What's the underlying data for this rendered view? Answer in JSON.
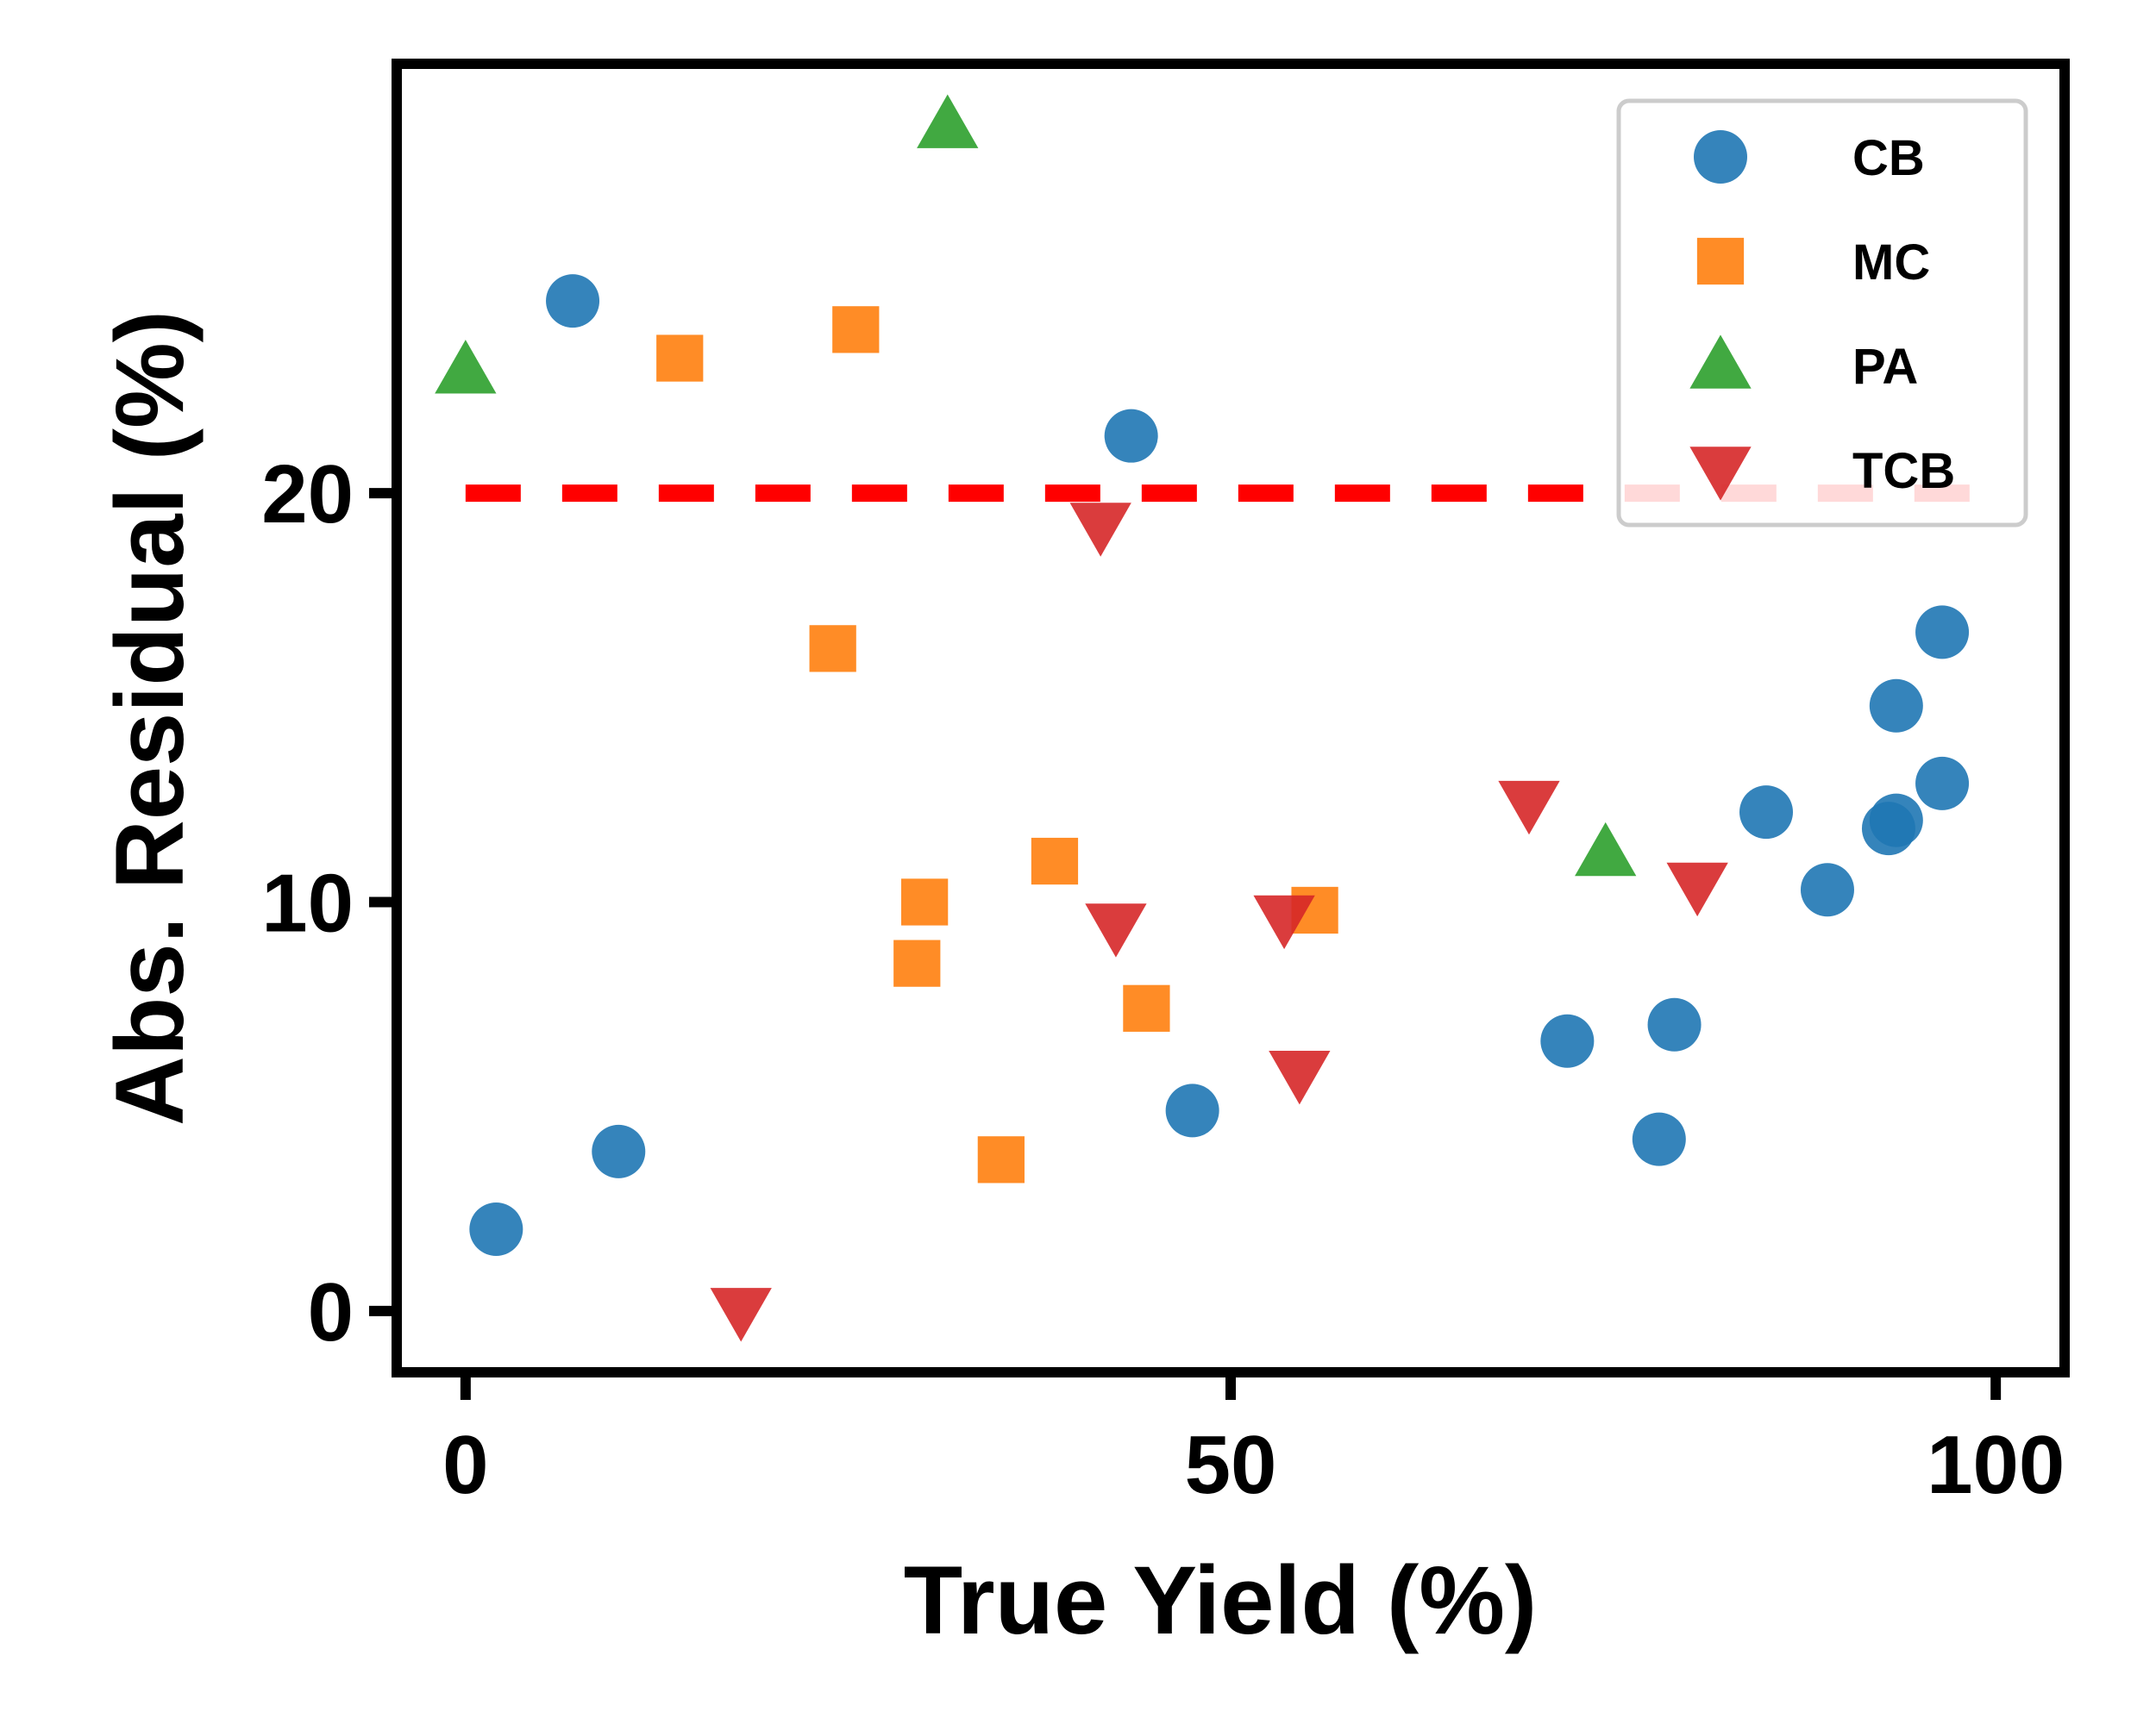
{
  "chart_data": {
    "type": "scatter",
    "xlabel": "True Yield (%)",
    "ylabel": "Abs. Residual (%)",
    "xlim": [
      -4.5,
      104.5
    ],
    "ylim": [
      -1.5,
      30.5
    ],
    "xticks": [
      0,
      50,
      100
    ],
    "yticks": [
      0,
      10,
      20
    ],
    "grid": false,
    "legend_position": "top-right",
    "threshold": {
      "y": 20,
      "x_range": [
        0,
        100
      ],
      "color": "#ff0000",
      "style": "dashed"
    },
    "series": [
      {
        "name": "CB",
        "marker": "circle",
        "color": "#1f77b4",
        "points": [
          [
            2,
            2.0
          ],
          [
            7,
            24.7
          ],
          [
            10,
            3.9
          ],
          [
            43.5,
            21.4
          ],
          [
            47.5,
            4.9
          ],
          [
            72,
            6.6
          ],
          [
            78,
            4.2
          ],
          [
            79,
            7.0
          ],
          [
            85,
            12.2
          ],
          [
            89,
            10.3
          ],
          [
            93,
            11.8
          ],
          [
            93.5,
            12.0
          ],
          [
            93.5,
            14.8
          ],
          [
            96.5,
            12.9
          ],
          [
            96.5,
            16.6
          ]
        ]
      },
      {
        "name": "MC",
        "marker": "square",
        "color": "#ff7f0e",
        "points": [
          [
            14,
            23.3
          ],
          [
            25.5,
            24.0
          ],
          [
            24,
            16.2
          ],
          [
            29.5,
            8.5
          ],
          [
            30,
            10.0
          ],
          [
            35,
            3.7
          ],
          [
            38.5,
            11.0
          ],
          [
            44.5,
            7.4
          ],
          [
            55.5,
            9.8
          ]
        ]
      },
      {
        "name": "PA",
        "marker": "triangle-up",
        "color": "#2ca02c",
        "points": [
          [
            0,
            23.0
          ],
          [
            31.5,
            29.0
          ],
          [
            74.5,
            11.2
          ]
        ]
      },
      {
        "name": "TCB",
        "marker": "triangle-down",
        "color": "#d62728",
        "points": [
          [
            18,
            0.0
          ],
          [
            41.5,
            19.2
          ],
          [
            42.5,
            9.4
          ],
          [
            53.5,
            9.6
          ],
          [
            54.5,
            5.8
          ],
          [
            69.5,
            12.4
          ],
          [
            80.5,
            10.4
          ]
        ]
      }
    ]
  }
}
